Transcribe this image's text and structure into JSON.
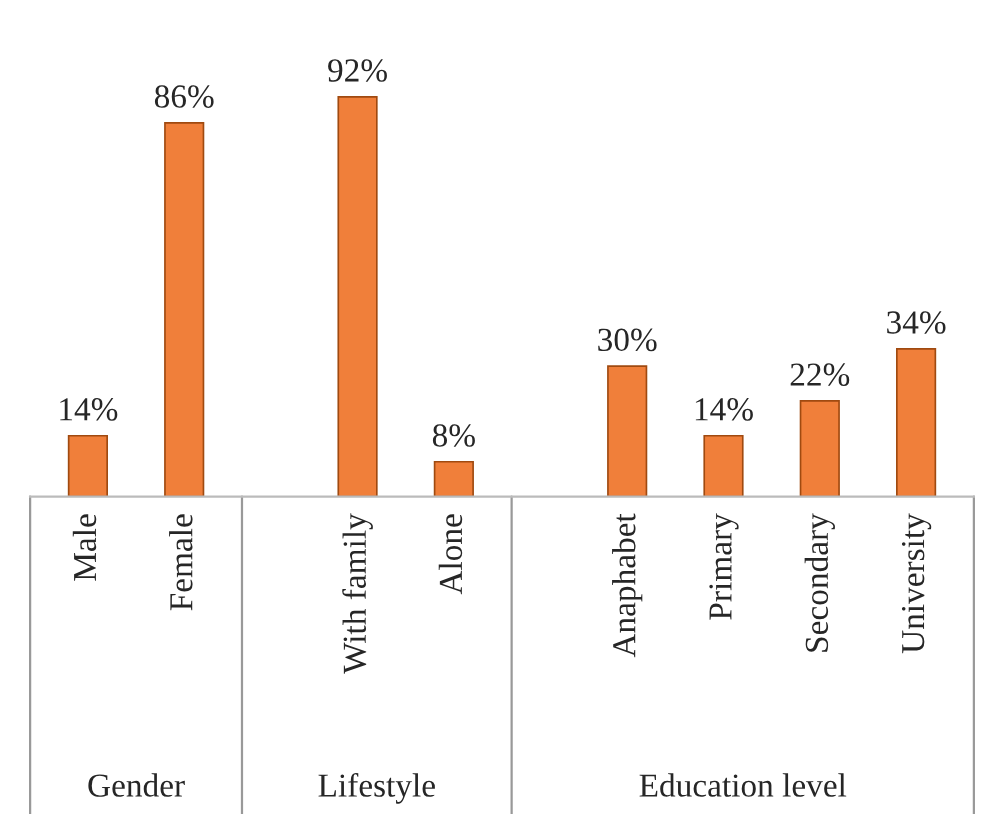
{
  "chart_data": {
    "type": "bar",
    "categories": [
      "Male",
      "Female",
      "With family",
      "Alone",
      "Anaphabet",
      "Primary",
      "Secondary",
      "University"
    ],
    "values": [
      14,
      86,
      92,
      8,
      30,
      14,
      22,
      34
    ],
    "value_labels": [
      "14%",
      "86%",
      "92%",
      "8%",
      "30%",
      "14%",
      "22%",
      "34%"
    ],
    "color": "#f07f3a",
    "annotations": [
      "Gender",
      "Lifestyle",
      "Education level"
    ],
    "grid": false,
    "legend": false
  }
}
